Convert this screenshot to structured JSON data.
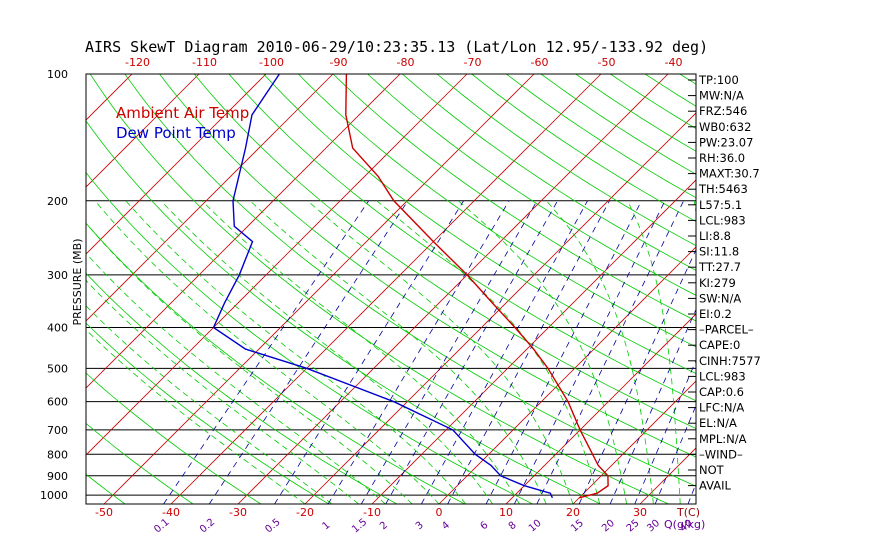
{
  "chart_data": {
    "type": "line",
    "title": "AIRS SkewT Diagram 2010-06-29/10:23:35.13 (Lat/Lon 12.95/-133.92 deg)",
    "ylabel": "PRESSURE (MB)",
    "y_scale": "log",
    "ylim": [
      1050,
      100
    ],
    "pressure_ticks": [
      "100",
      "200",
      "300",
      "400",
      "500",
      "600",
      "700",
      "800",
      "900",
      "1000"
    ],
    "pressure_levels": [
      100,
      200,
      300,
      400,
      500,
      600,
      700,
      800,
      900,
      1000
    ],
    "bottom_temp_ticks": [
      "-50",
      "-40",
      "-30",
      "-20",
      "-10",
      "0",
      "10",
      "20",
      "30"
    ],
    "bottom_temp_values": [
      -50,
      -40,
      -30,
      -20,
      -10,
      0,
      10,
      20,
      30
    ],
    "bottom_temp_unit": "T(C)",
    "top_temp_ticks": [
      "-120",
      "-110",
      "-100",
      "-90",
      "-80",
      "-70",
      "-60",
      "-50",
      "-40"
    ],
    "top_temp_values": [
      -120,
      -110,
      -100,
      -90,
      -80,
      -70,
      -60,
      -50,
      -40
    ],
    "mixing_ratio_ticks": [
      "0.1",
      "0.2",
      "0.5",
      "1",
      "1.5",
      "2",
      "3",
      "4",
      "6",
      "8",
      "10",
      "15",
      "20",
      "25",
      "30",
      "40"
    ],
    "mixing_ratio_values": [
      0.1,
      0.2,
      0.5,
      1,
      1.5,
      2,
      3,
      4,
      6,
      8,
      10,
      15,
      20,
      25,
      30,
      40
    ],
    "mixing_ratio_unit": "Q(g/kg)",
    "legend": {
      "position": "top-left",
      "items": [
        "Ambient Air Temp",
        "Dew Point Temp"
      ]
    },
    "series": [
      {
        "name": "Ambient Air Temp",
        "color": "#cc0000",
        "p": [
          1015,
          990,
          950,
          900,
          850,
          800,
          700,
          600,
          500,
          450,
          400,
          350,
          300,
          250,
          200,
          175,
          150,
          125,
          100
        ],
        "t": [
          20,
          22,
          22.5,
          21,
          18,
          15.5,
          10,
          4,
          -4,
          -9,
          -15,
          -22,
          -30,
          -40,
          -52,
          -58,
          -66,
          -72,
          -78
        ]
      },
      {
        "name": "Dew Point Temp",
        "color": "#0000cc",
        "p": [
          1015,
          990,
          950,
          900,
          850,
          800,
          700,
          600,
          500,
          450,
          400,
          350,
          300,
          250,
          230,
          200,
          150,
          125,
          100
        ],
        "t": [
          16,
          15,
          10,
          5,
          2,
          -2,
          -9,
          -22,
          -40,
          -52,
          -60,
          -62,
          -64,
          -67,
          -72,
          -76,
          -82,
          -86,
          -88
        ]
      }
    ],
    "colors": {
      "isotherm": "#cc0000",
      "dry_adiabat": "#00cc00",
      "moist_adiabat": "#00cc00",
      "mixing_ratio": "#000099",
      "isobar": "#000000"
    }
  },
  "indices": [
    "TP:100",
    "MW:N/A",
    "FRZ:546",
    "WB0:632",
    "PW:23.07",
    "RH:36.0",
    "MAXT:30.7",
    "TH:5463",
    "L57:5.1",
    "LCL:983",
    "LI:8.8",
    "SI:11.8",
    "TT:27.7",
    "KI:279",
    "SW:N/A",
    "EI:0.2",
    "–PARCEL–",
    "CAPE:0",
    "CINH:7577",
    "LCL:983",
    "CAP:0.6",
    "LFC:N/A",
    "EL:N/A",
    "MPL:N/A",
    "–WIND–",
    "NOT",
    "AVAIL"
  ]
}
